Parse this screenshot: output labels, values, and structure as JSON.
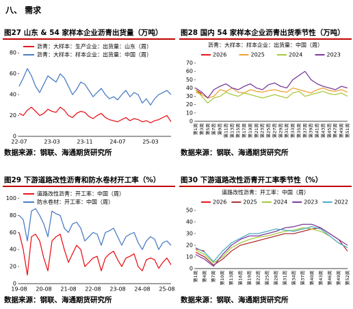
{
  "heading": "八、 需求",
  "chart_data": [
    {
      "type": "line",
      "title": "图27  山东 & 54 家样本企业沥青出货量（万吨）",
      "source": "数据来源：钢联、海通期货研究所",
      "legend": "upper left",
      "categories": [
        "22-07",
        null,
        null,
        null,
        null,
        null,
        null,
        null,
        "23-03",
        null,
        null,
        null,
        null,
        null,
        null,
        null,
        "23-11",
        null,
        null,
        null,
        null,
        null,
        null,
        null,
        "24-07",
        null,
        null,
        null,
        null,
        null,
        null,
        null,
        "25-03",
        null,
        null,
        null,
        null,
        null
      ],
      "series": [
        {
          "name": "沥青：大样本：生产企业：出货量：山东（周）",
          "color": "#e8141b",
          "values": [
            22,
            20,
            25,
            28,
            24,
            20,
            22,
            26,
            24,
            23,
            28,
            25,
            20,
            18,
            22,
            24,
            23,
            19,
            17,
            20,
            22,
            18,
            16,
            15,
            14,
            16,
            18,
            15,
            17,
            16,
            14,
            15,
            13,
            15,
            16,
            18,
            20,
            14
          ]
        },
        {
          "name": "沥青：大样本：样本企业：出货量：中国（周）",
          "color": "#4a7cc4",
          "values": [
            48,
            56,
            65,
            58,
            48,
            42,
            50,
            58,
            55,
            52,
            60,
            56,
            48,
            40,
            45,
            52,
            50,
            44,
            38,
            42,
            46,
            40,
            36,
            38,
            35,
            40,
            44,
            38,
            42,
            40,
            32,
            36,
            30,
            36,
            40,
            42,
            44,
            40
          ]
        }
      ],
      "ylim": [
        0,
        90
      ],
      "yticks": [
        0,
        20,
        40,
        60,
        80
      ]
    },
    {
      "type": "line",
      "title": "图28  国内 54 家样本企业沥青出货季节性（万吨）",
      "subtitle": "沥青：大样本：样本企业：出货量：中国（周）",
      "source": "数据来源：钢联、海通期货研究所",
      "legend": "top",
      "categories": [
        "第1周",
        "第3周",
        "第5周",
        "第7周",
        "第9周",
        "第11周",
        "第13周",
        "第15周",
        "第17周",
        "第19周",
        "第21周",
        "第23周",
        "第25周",
        "第27周",
        "第29周",
        "第31周",
        "第33周",
        "第35周",
        "第37周",
        "第39周",
        "第41周",
        "第43周",
        "第45周",
        "第47周",
        "第49周",
        "第51周"
      ],
      "series": [
        {
          "name": "2026",
          "color": "#e8141b",
          "values": [
            38,
            33,
            null,
            null,
            null,
            null,
            null,
            null,
            null,
            null,
            null,
            null,
            null,
            null,
            null,
            null,
            null,
            null,
            null,
            null,
            null,
            null,
            null,
            null,
            null,
            null
          ]
        },
        {
          "name": "2025",
          "color": "#f0a030",
          "values": [
            35,
            32,
            28,
            30,
            38,
            36,
            40,
            35,
            34,
            38,
            36,
            35,
            37,
            38,
            36,
            35,
            40,
            38,
            36,
            34,
            38,
            40,
            37,
            36,
            38,
            35
          ]
        },
        {
          "name": "2024",
          "color": "#a8c83c",
          "values": [
            38,
            30,
            22,
            28,
            30,
            35,
            32,
            30,
            34,
            32,
            30,
            28,
            30,
            32,
            30,
            28,
            34,
            36,
            30,
            32,
            34,
            36,
            33,
            32,
            34,
            30
          ]
        },
        {
          "name": "2023",
          "color": "#7a3c9c",
          "values": [
            40,
            35,
            28,
            38,
            42,
            45,
            40,
            38,
            42,
            45,
            40,
            38,
            44,
            46,
            42,
            40,
            50,
            55,
            60,
            50,
            45,
            42,
            40,
            38,
            42,
            40
          ]
        }
      ],
      "ylim": [
        0,
        70
      ],
      "yticks": [
        0,
        10,
        20,
        30,
        40,
        50,
        60,
        70
      ]
    },
    {
      "type": "line",
      "title": "图29  下游道路改性沥青和防水卷材开工率（%）",
      "source": "数据来源：钢联、海通期货研究所",
      "legend": "upper left",
      "categories": [
        "19-08",
        null,
        null,
        null,
        null,
        null,
        "20-08",
        null,
        null,
        null,
        null,
        null,
        "21-08",
        null,
        null,
        null,
        null,
        null,
        "22-08",
        null,
        null,
        null,
        null,
        null,
        "23-08",
        null,
        null,
        null,
        null,
        null,
        "24-08",
        null,
        null,
        null,
        null,
        null,
        "25-08",
        null
      ],
      "series": [
        {
          "name": "道路改性沥青：开工率：中国（周）",
          "color": "#e8141b",
          "values": [
            60,
            40,
            10,
            55,
            58,
            50,
            30,
            15,
            50,
            55,
            58,
            40,
            25,
            35,
            45,
            40,
            20,
            25,
            30,
            32,
            15,
            30,
            35,
            38,
            28,
            20,
            30,
            32,
            35,
            20,
            15,
            28,
            30,
            28,
            18,
            25,
            30,
            22
          ]
        },
        {
          "name": "防水卷材：开工率：中国（周）",
          "color": "#4a7cc4",
          "values": [
            80,
            75,
            50,
            85,
            88,
            80,
            70,
            55,
            85,
            82,
            80,
            65,
            60,
            70,
            72,
            65,
            50,
            55,
            60,
            58,
            45,
            60,
            62,
            65,
            55,
            45,
            55,
            58,
            60,
            48,
            40,
            50,
            55,
            52,
            40,
            48,
            50,
            45
          ]
        }
      ],
      "ylim": [
        0,
        110
      ],
      "yticks": [
        0,
        20,
        40,
        60,
        80,
        100
      ]
    },
    {
      "type": "line",
      "title": "图30  下游道路改性沥青开工率季节性（%）",
      "subtitle": "道路改性沥青：开工率：中国（周）",
      "source": "数据来源：钢联、海通期货研究所",
      "legend": "top",
      "categories": [
        "第1周",
        "第4周",
        "第7周",
        "第10周",
        "第13周",
        "第16周",
        "第19周",
        "第22周",
        "第25周",
        "第28周",
        "第31周",
        "第34周",
        "第37周",
        "第40周",
        "第43周",
        "第46周",
        "第49周",
        "第52周"
      ],
      "series": [
        {
          "name": "2026",
          "color": "#e8141b",
          "values": [
            17,
            15,
            null,
            null,
            null,
            null,
            null,
            null,
            null,
            null,
            null,
            null,
            null,
            null,
            null,
            null,
            null,
            null
          ]
        },
        {
          "name": "2025",
          "color": "#b03030",
          "values": [
            14,
            10,
            3,
            8,
            15,
            20,
            22,
            24,
            26,
            28,
            30,
            30,
            32,
            34,
            35,
            30,
            25,
            15
          ]
        },
        {
          "name": "2024",
          "color": "#a8c83c",
          "values": [
            16,
            12,
            5,
            10,
            18,
            22,
            25,
            27,
            28,
            30,
            32,
            33,
            35,
            34,
            32,
            28,
            22,
            18
          ]
        },
        {
          "name": "2023",
          "color": "#7a3c9c",
          "values": [
            12,
            8,
            2,
            12,
            20,
            25,
            28,
            28,
            30,
            32,
            35,
            36,
            38,
            38,
            35,
            30,
            25,
            20
          ]
        },
        {
          "name": "2022",
          "color": "#4bacc6",
          "values": [
            18,
            14,
            6,
            15,
            22,
            26,
            30,
            30,
            32,
            34,
            33,
            32,
            34,
            36,
            34,
            28,
            22,
            18
          ]
        }
      ],
      "ylim": [
        0,
        50
      ],
      "yticks": [
        0,
        10,
        20,
        30,
        40,
        50
      ]
    }
  ]
}
